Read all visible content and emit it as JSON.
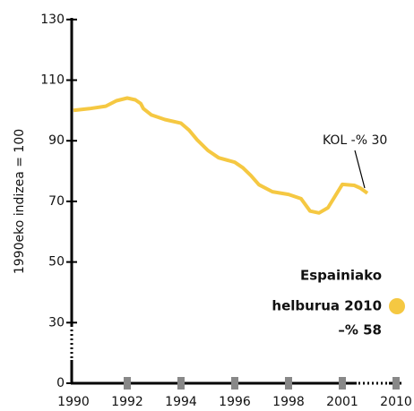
{
  "chart_data": {
    "type": "line",
    "y_label": "1990eko indizea = 100",
    "annotation": "KOL -% 30",
    "target_text": [
      "Espainiako",
      "helburua 2010",
      "–% 58"
    ],
    "series": [
      {
        "name": "KOL",
        "color": "#f5c842",
        "x": [
          1990,
          1990.6,
          1991.2,
          1991.6,
          1992,
          1992.3,
          1992.5,
          1992.6,
          1992.9,
          1993.4,
          1994,
          1994.3,
          1994.6,
          1995,
          1995.4,
          1996,
          1996.3,
          1996.6,
          1996.9,
          1997.4,
          1998,
          1998.7,
          1999.2,
          1999.7,
          2000.2,
          2001,
          2003,
          2004,
          2005.2
        ],
        "values": [
          100,
          100.6,
          101.4,
          103.2,
          104.1,
          103.5,
          102.3,
          100.6,
          98.5,
          97,
          95.8,
          93.5,
          90.3,
          86.8,
          84.4,
          82.9,
          81.1,
          78.5,
          75.5,
          73.2,
          72.3,
          70.9,
          66.8,
          66.2,
          67.9,
          75.6,
          75.3,
          74.4,
          72.7
        ]
      }
    ],
    "target_color": "#f5c842",
    "xlim": [
      1990,
      2010
    ],
    "xticks": [
      1990,
      1992,
      1994,
      1996,
      1998,
      2001,
      2010
    ],
    "ylim": [
      0,
      130
    ],
    "yticks": [
      0,
      30,
      50,
      70,
      90,
      110,
      130
    ]
  }
}
